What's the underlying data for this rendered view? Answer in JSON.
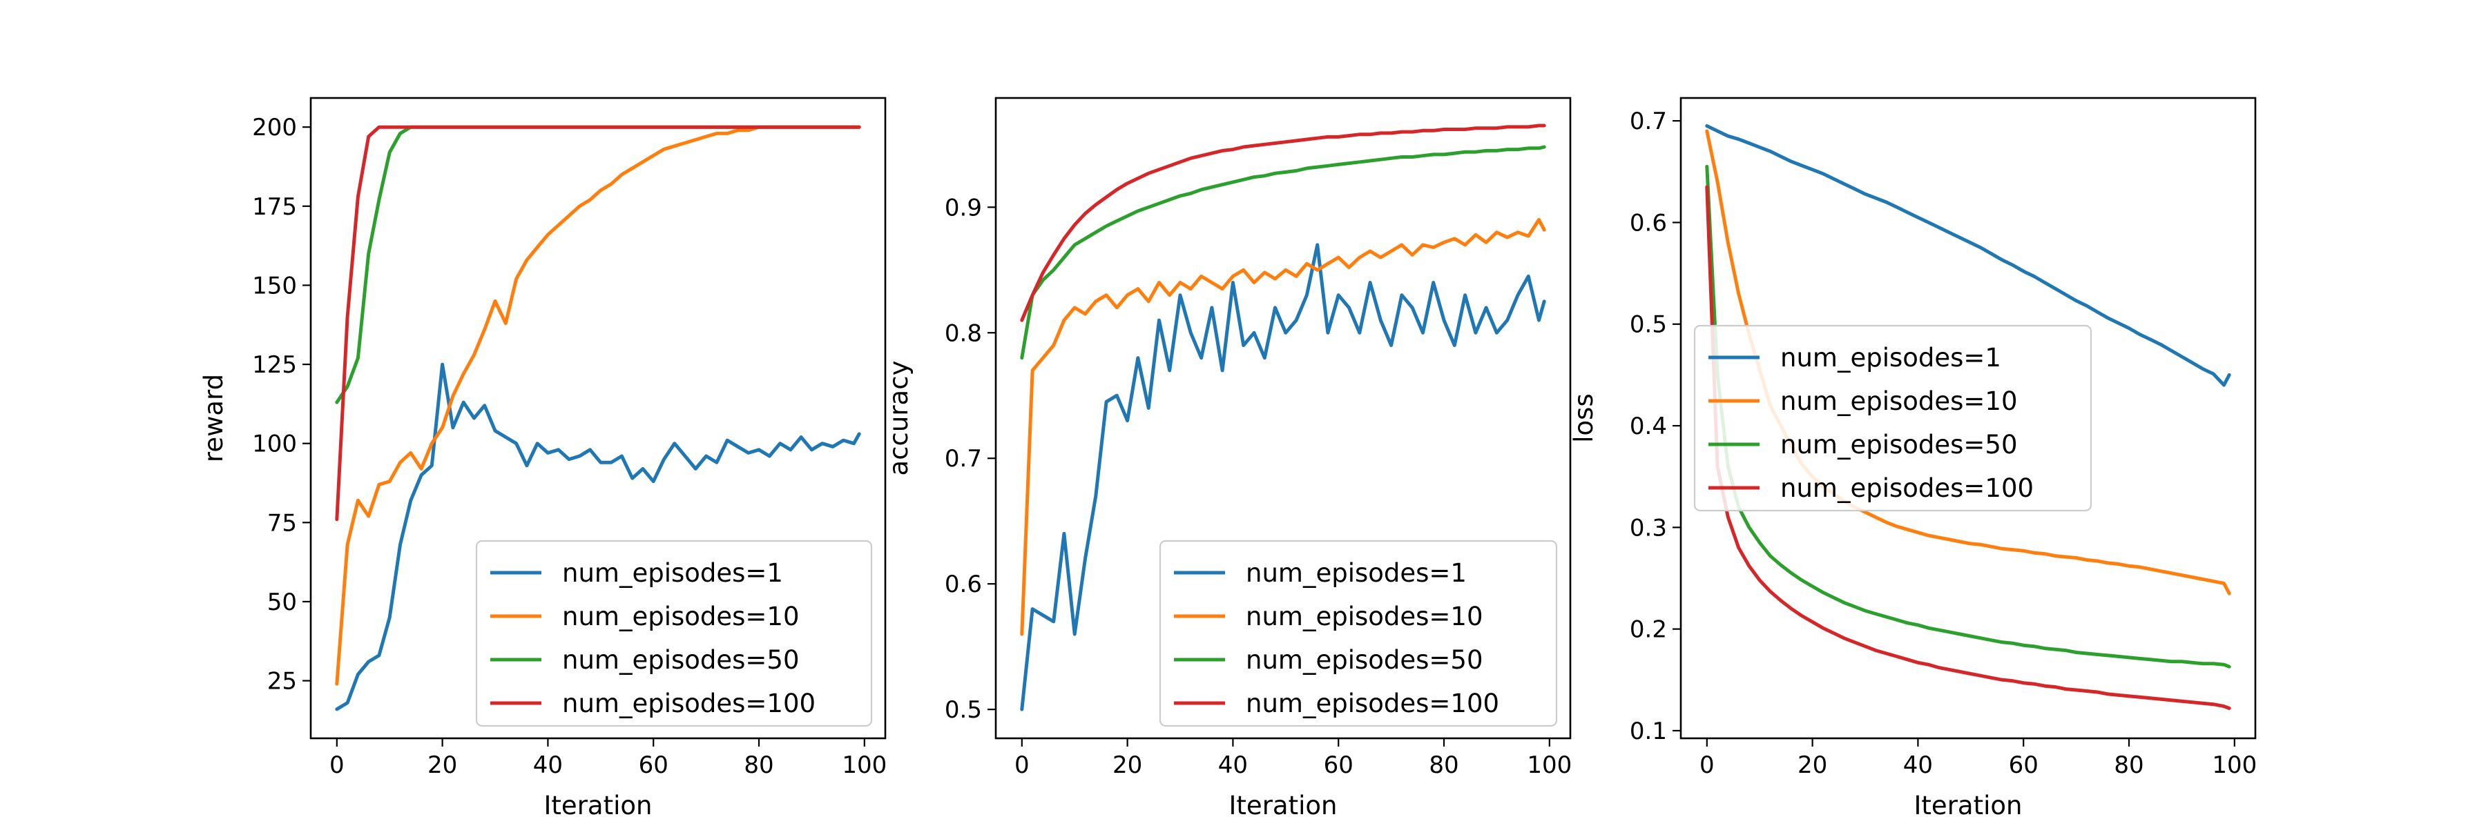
{
  "colors": {
    "num_episodes=1": "#1f77b4",
    "num_episodes=10": "#ff7f0e",
    "num_episodes=50": "#2ca02c",
    "num_episodes=100": "#d62728"
  },
  "chart_data": [
    {
      "type": "line",
      "xlabel": "Iteration",
      "ylabel": "reward",
      "xlim": [
        -4.95,
        103.95
      ],
      "ylim": [
        6.8,
        209.2
      ],
      "xticks": [
        0,
        20,
        40,
        60,
        80,
        100
      ],
      "xtick_labels": [
        "0",
        "20",
        "40",
        "60",
        "80",
        "100"
      ],
      "yticks": [
        25,
        50,
        75,
        100,
        125,
        150,
        175,
        200
      ],
      "ytick_labels": [
        "25",
        "50",
        "75",
        "100",
        "125",
        "150",
        "175",
        "200"
      ],
      "grid": false,
      "legend_position": "lower-right",
      "x": [
        0,
        2,
        4,
        6,
        8,
        10,
        12,
        14,
        16,
        18,
        20,
        22,
        24,
        26,
        28,
        30,
        32,
        34,
        36,
        38,
        40,
        42,
        44,
        46,
        48,
        50,
        52,
        54,
        56,
        58,
        60,
        62,
        64,
        66,
        68,
        70,
        72,
        74,
        76,
        78,
        80,
        82,
        84,
        86,
        88,
        90,
        92,
        94,
        96,
        98,
        99
      ],
      "series": [
        {
          "name": "num_episodes=1",
          "values": [
            16,
            18,
            27,
            31,
            33,
            45,
            68,
            82,
            90,
            93,
            125,
            105,
            113,
            108,
            112,
            104,
            102,
            100,
            93,
            100,
            97,
            98,
            95,
            96,
            98,
            94,
            94,
            96,
            89,
            92,
            88,
            95,
            100,
            96,
            92,
            96,
            94,
            101,
            99,
            97,
            98,
            96,
            100,
            98,
            102,
            98,
            100,
            99,
            101,
            100,
            103
          ]
        },
        {
          "name": "num_episodes=10",
          "values": [
            24,
            68,
            82,
            77,
            87,
            88,
            94,
            97,
            92,
            100,
            105,
            115,
            122,
            128,
            136,
            145,
            138,
            152,
            158,
            162,
            166,
            169,
            172,
            175,
            177,
            180,
            182,
            185,
            187,
            189,
            191,
            193,
            194,
            195,
            196,
            197,
            198,
            198,
            199,
            199,
            200,
            200,
            200,
            200,
            200,
            200,
            200,
            200,
            200,
            200,
            200
          ]
        },
        {
          "name": "num_episodes=50",
          "values": [
            113,
            118,
            127,
            160,
            177,
            192,
            198,
            200,
            200,
            200,
            200,
            200,
            200,
            200,
            200,
            200,
            200,
            200,
            200,
            200,
            200,
            200,
            200,
            200,
            200,
            200,
            200,
            200,
            200,
            200,
            200,
            200,
            200,
            200,
            200,
            200,
            200,
            200,
            200,
            200,
            200,
            200,
            200,
            200,
            200,
            200,
            200,
            200,
            200,
            200,
            200
          ]
        },
        {
          "name": "num_episodes=100",
          "values": [
            76,
            140,
            178,
            197,
            200,
            200,
            200,
            200,
            200,
            200,
            200,
            200,
            200,
            200,
            200,
            200,
            200,
            200,
            200,
            200,
            200,
            200,
            200,
            200,
            200,
            200,
            200,
            200,
            200,
            200,
            200,
            200,
            200,
            200,
            200,
            200,
            200,
            200,
            200,
            200,
            200,
            200,
            200,
            200,
            200,
            200,
            200,
            200,
            200,
            200,
            200
          ]
        }
      ]
    },
    {
      "type": "line",
      "xlabel": "Iteration",
      "ylabel": "accuracy",
      "xlim": [
        -4.95,
        103.95
      ],
      "ylim": [
        0.477,
        0.987
      ],
      "xticks": [
        0,
        20,
        40,
        60,
        80,
        100
      ],
      "xtick_labels": [
        "0",
        "20",
        "40",
        "60",
        "80",
        "100"
      ],
      "yticks": [
        0.5,
        0.6,
        0.7,
        0.8,
        0.9
      ],
      "ytick_labels": [
        "0.5",
        "0.6",
        "0.7",
        "0.8",
        "0.9"
      ],
      "grid": false,
      "legend_position": "lower-right",
      "x": [
        0,
        2,
        4,
        6,
        8,
        10,
        12,
        14,
        16,
        18,
        20,
        22,
        24,
        26,
        28,
        30,
        32,
        34,
        36,
        38,
        40,
        42,
        44,
        46,
        48,
        50,
        52,
        54,
        56,
        58,
        60,
        62,
        64,
        66,
        68,
        70,
        72,
        74,
        76,
        78,
        80,
        82,
        84,
        86,
        88,
        90,
        92,
        94,
        96,
        98,
        99
      ],
      "series": [
        {
          "name": "num_episodes=1",
          "values": [
            0.5,
            0.58,
            0.575,
            0.57,
            0.64,
            0.56,
            0.62,
            0.67,
            0.745,
            0.75,
            0.73,
            0.78,
            0.74,
            0.81,
            0.77,
            0.83,
            0.8,
            0.78,
            0.82,
            0.77,
            0.84,
            0.79,
            0.8,
            0.78,
            0.82,
            0.8,
            0.81,
            0.83,
            0.87,
            0.8,
            0.83,
            0.82,
            0.8,
            0.84,
            0.81,
            0.79,
            0.83,
            0.82,
            0.8,
            0.84,
            0.81,
            0.79,
            0.83,
            0.8,
            0.82,
            0.8,
            0.81,
            0.83,
            0.845,
            0.81,
            0.825
          ]
        },
        {
          "name": "num_episodes=10",
          "values": [
            0.56,
            0.77,
            0.78,
            0.79,
            0.81,
            0.82,
            0.815,
            0.825,
            0.83,
            0.82,
            0.83,
            0.835,
            0.825,
            0.84,
            0.83,
            0.84,
            0.835,
            0.845,
            0.84,
            0.835,
            0.845,
            0.85,
            0.84,
            0.848,
            0.843,
            0.85,
            0.845,
            0.855,
            0.85,
            0.855,
            0.86,
            0.852,
            0.86,
            0.865,
            0.86,
            0.865,
            0.87,
            0.862,
            0.87,
            0.868,
            0.872,
            0.875,
            0.87,
            0.878,
            0.872,
            0.88,
            0.876,
            0.88,
            0.877,
            0.89,
            0.882
          ]
        },
        {
          "name": "num_episodes=50",
          "values": [
            0.78,
            0.83,
            0.842,
            0.85,
            0.86,
            0.87,
            0.875,
            0.88,
            0.885,
            0.889,
            0.893,
            0.897,
            0.9,
            0.903,
            0.906,
            0.909,
            0.911,
            0.914,
            0.916,
            0.918,
            0.92,
            0.922,
            0.924,
            0.925,
            0.927,
            0.928,
            0.929,
            0.931,
            0.932,
            0.933,
            0.934,
            0.935,
            0.936,
            0.937,
            0.938,
            0.939,
            0.94,
            0.94,
            0.941,
            0.942,
            0.942,
            0.943,
            0.944,
            0.944,
            0.945,
            0.945,
            0.946,
            0.946,
            0.947,
            0.947,
            0.948
          ]
        },
        {
          "name": "num_episodes=100",
          "values": [
            0.81,
            0.83,
            0.848,
            0.862,
            0.875,
            0.886,
            0.895,
            0.902,
            0.908,
            0.914,
            0.919,
            0.923,
            0.927,
            0.93,
            0.933,
            0.936,
            0.939,
            0.941,
            0.943,
            0.945,
            0.946,
            0.948,
            0.949,
            0.95,
            0.951,
            0.952,
            0.953,
            0.954,
            0.955,
            0.956,
            0.956,
            0.957,
            0.958,
            0.958,
            0.959,
            0.959,
            0.96,
            0.96,
            0.961,
            0.961,
            0.962,
            0.962,
            0.962,
            0.963,
            0.963,
            0.963,
            0.964,
            0.964,
            0.964,
            0.965,
            0.965
          ]
        }
      ]
    },
    {
      "type": "line",
      "xlabel": "Iteration",
      "ylabel": "loss",
      "xlim": [
        -4.95,
        103.95
      ],
      "ylim": [
        0.0925,
        0.7225
      ],
      "xticks": [
        0,
        20,
        40,
        60,
        80,
        100
      ],
      "xtick_labels": [
        "0",
        "20",
        "40",
        "60",
        "80",
        "100"
      ],
      "yticks": [
        0.1,
        0.2,
        0.3,
        0.4,
        0.5,
        0.6,
        0.7
      ],
      "ytick_labels": [
        "0.1",
        "0.2",
        "0.3",
        "0.4",
        "0.5",
        "0.6",
        "0.7"
      ],
      "grid": false,
      "legend_position": "center-left",
      "x": [
        0,
        2,
        4,
        6,
        8,
        10,
        12,
        14,
        16,
        18,
        20,
        22,
        24,
        26,
        28,
        30,
        32,
        34,
        36,
        38,
        40,
        42,
        44,
        46,
        48,
        50,
        52,
        54,
        56,
        58,
        60,
        62,
        64,
        66,
        68,
        70,
        72,
        74,
        76,
        78,
        80,
        82,
        84,
        86,
        88,
        90,
        92,
        94,
        96,
        98,
        99
      ],
      "series": [
        {
          "name": "num_episodes=1",
          "values": [
            0.695,
            0.69,
            0.685,
            0.682,
            0.678,
            0.674,
            0.67,
            0.665,
            0.66,
            0.656,
            0.652,
            0.648,
            0.643,
            0.638,
            0.633,
            0.628,
            0.624,
            0.62,
            0.615,
            0.61,
            0.605,
            0.6,
            0.595,
            0.59,
            0.585,
            0.58,
            0.575,
            0.569,
            0.563,
            0.558,
            0.552,
            0.547,
            0.541,
            0.535,
            0.529,
            0.523,
            0.518,
            0.512,
            0.506,
            0.501,
            0.496,
            0.49,
            0.485,
            0.48,
            0.474,
            0.468,
            0.462,
            0.456,
            0.451,
            0.44,
            0.45
          ]
        },
        {
          "name": "num_episodes=10",
          "values": [
            0.69,
            0.64,
            0.58,
            0.53,
            0.49,
            0.455,
            0.42,
            0.4,
            0.38,
            0.362,
            0.35,
            0.34,
            0.333,
            0.326,
            0.32,
            0.315,
            0.31,
            0.305,
            0.301,
            0.298,
            0.295,
            0.292,
            0.29,
            0.288,
            0.286,
            0.284,
            0.283,
            0.281,
            0.279,
            0.278,
            0.277,
            0.275,
            0.274,
            0.272,
            0.271,
            0.27,
            0.268,
            0.267,
            0.265,
            0.264,
            0.262,
            0.261,
            0.259,
            0.257,
            0.255,
            0.253,
            0.251,
            0.249,
            0.247,
            0.245,
            0.235
          ]
        },
        {
          "name": "num_episodes=50",
          "values": [
            0.655,
            0.45,
            0.36,
            0.32,
            0.3,
            0.285,
            0.272,
            0.263,
            0.255,
            0.248,
            0.242,
            0.236,
            0.231,
            0.226,
            0.222,
            0.218,
            0.215,
            0.212,
            0.209,
            0.206,
            0.204,
            0.201,
            0.199,
            0.197,
            0.195,
            0.193,
            0.191,
            0.189,
            0.187,
            0.186,
            0.184,
            0.183,
            0.181,
            0.18,
            0.179,
            0.177,
            0.176,
            0.175,
            0.174,
            0.173,
            0.172,
            0.171,
            0.17,
            0.169,
            0.168,
            0.168,
            0.167,
            0.166,
            0.166,
            0.165,
            0.163
          ]
        },
        {
          "name": "num_episodes=100",
          "values": [
            0.635,
            0.36,
            0.31,
            0.28,
            0.262,
            0.248,
            0.237,
            0.228,
            0.22,
            0.213,
            0.207,
            0.201,
            0.196,
            0.191,
            0.187,
            0.183,
            0.179,
            0.176,
            0.173,
            0.17,
            0.167,
            0.165,
            0.162,
            0.16,
            0.158,
            0.156,
            0.154,
            0.152,
            0.15,
            0.149,
            0.147,
            0.146,
            0.144,
            0.143,
            0.141,
            0.14,
            0.139,
            0.138,
            0.136,
            0.135,
            0.134,
            0.133,
            0.132,
            0.131,
            0.13,
            0.129,
            0.128,
            0.127,
            0.126,
            0.124,
            0.122
          ]
        }
      ]
    }
  ]
}
